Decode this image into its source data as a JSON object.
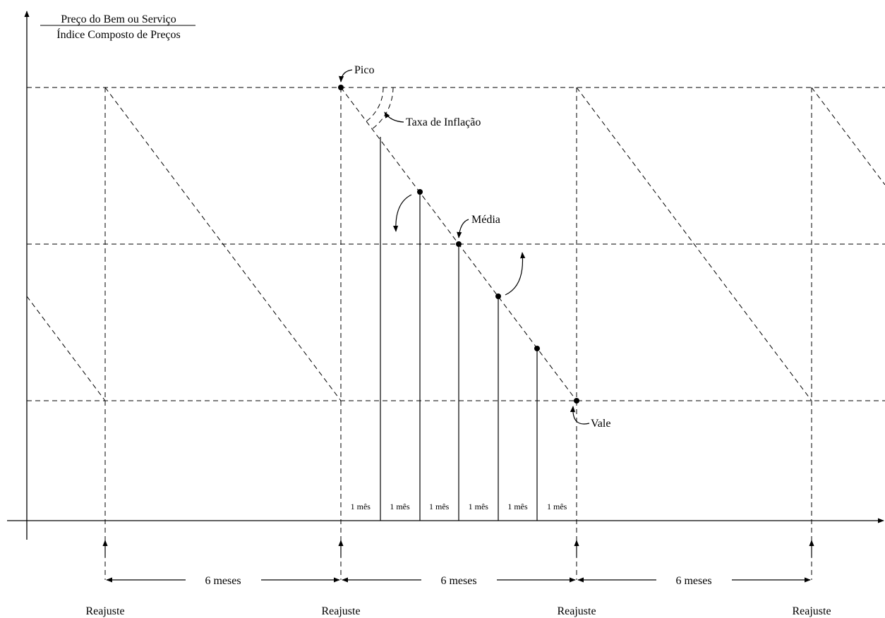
{
  "y_axis_label": {
    "numerator": "Preço do Bem ou Serviço",
    "denominator": "Índice Composto de Preços"
  },
  "annotations": {
    "peak": "Pico",
    "inflation_rate": "Taxa de Inflação",
    "average": "Média",
    "valley": "Vale"
  },
  "month_label": "1 mês",
  "month_count": 6,
  "interval_label": "6 meses",
  "adjustment_label": "Reajuste",
  "colors": {
    "ink": "#000000",
    "background": "#ffffff"
  }
}
